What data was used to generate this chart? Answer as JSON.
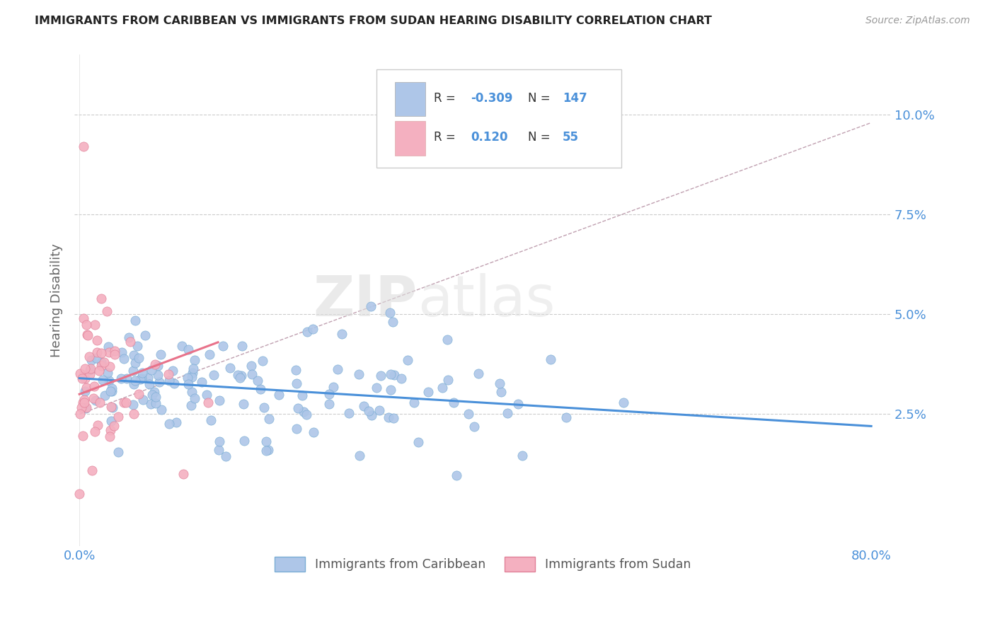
{
  "title": "IMMIGRANTS FROM CARIBBEAN VS IMMIGRANTS FROM SUDAN HEARING DISABILITY CORRELATION CHART",
  "source": "Source: ZipAtlas.com",
  "ylabel": "Hearing Disability",
  "blue_color": "#4a90d9",
  "pink_color": "#e8728a",
  "blue_dot_color": "#aec6e8",
  "pink_dot_color": "#f4b0c0",
  "blue_dot_edge": "#7aadd4",
  "pink_dot_edge": "#e08098",
  "axis_color": "#4a90d9",
  "background_color": "#ffffff",
  "grid_color": "#cccccc",
  "xlim": [
    -0.005,
    0.82
  ],
  "ylim": [
    -0.008,
    0.115
  ],
  "yticks": [
    0.025,
    0.05,
    0.075,
    0.1
  ],
  "ytick_labels": [
    "2.5%",
    "5.0%",
    "7.5%",
    "10.0%"
  ],
  "xtick_labels": [
    "0.0%",
    "80.0%"
  ],
  "blue_trend_x": [
    0.0,
    0.8
  ],
  "blue_trend_y": [
    0.034,
    0.022
  ],
  "pink_trend_x": [
    0.0,
    0.14
  ],
  "pink_trend_y": [
    0.03,
    0.043
  ],
  "dashed_line_x": [
    0.0,
    0.8
  ],
  "dashed_line_y": [
    0.025,
    0.098
  ],
  "legend_R_blue": "-0.309",
  "legend_N_blue": "147",
  "legend_R_pink": "0.120",
  "legend_N_pink": "55"
}
